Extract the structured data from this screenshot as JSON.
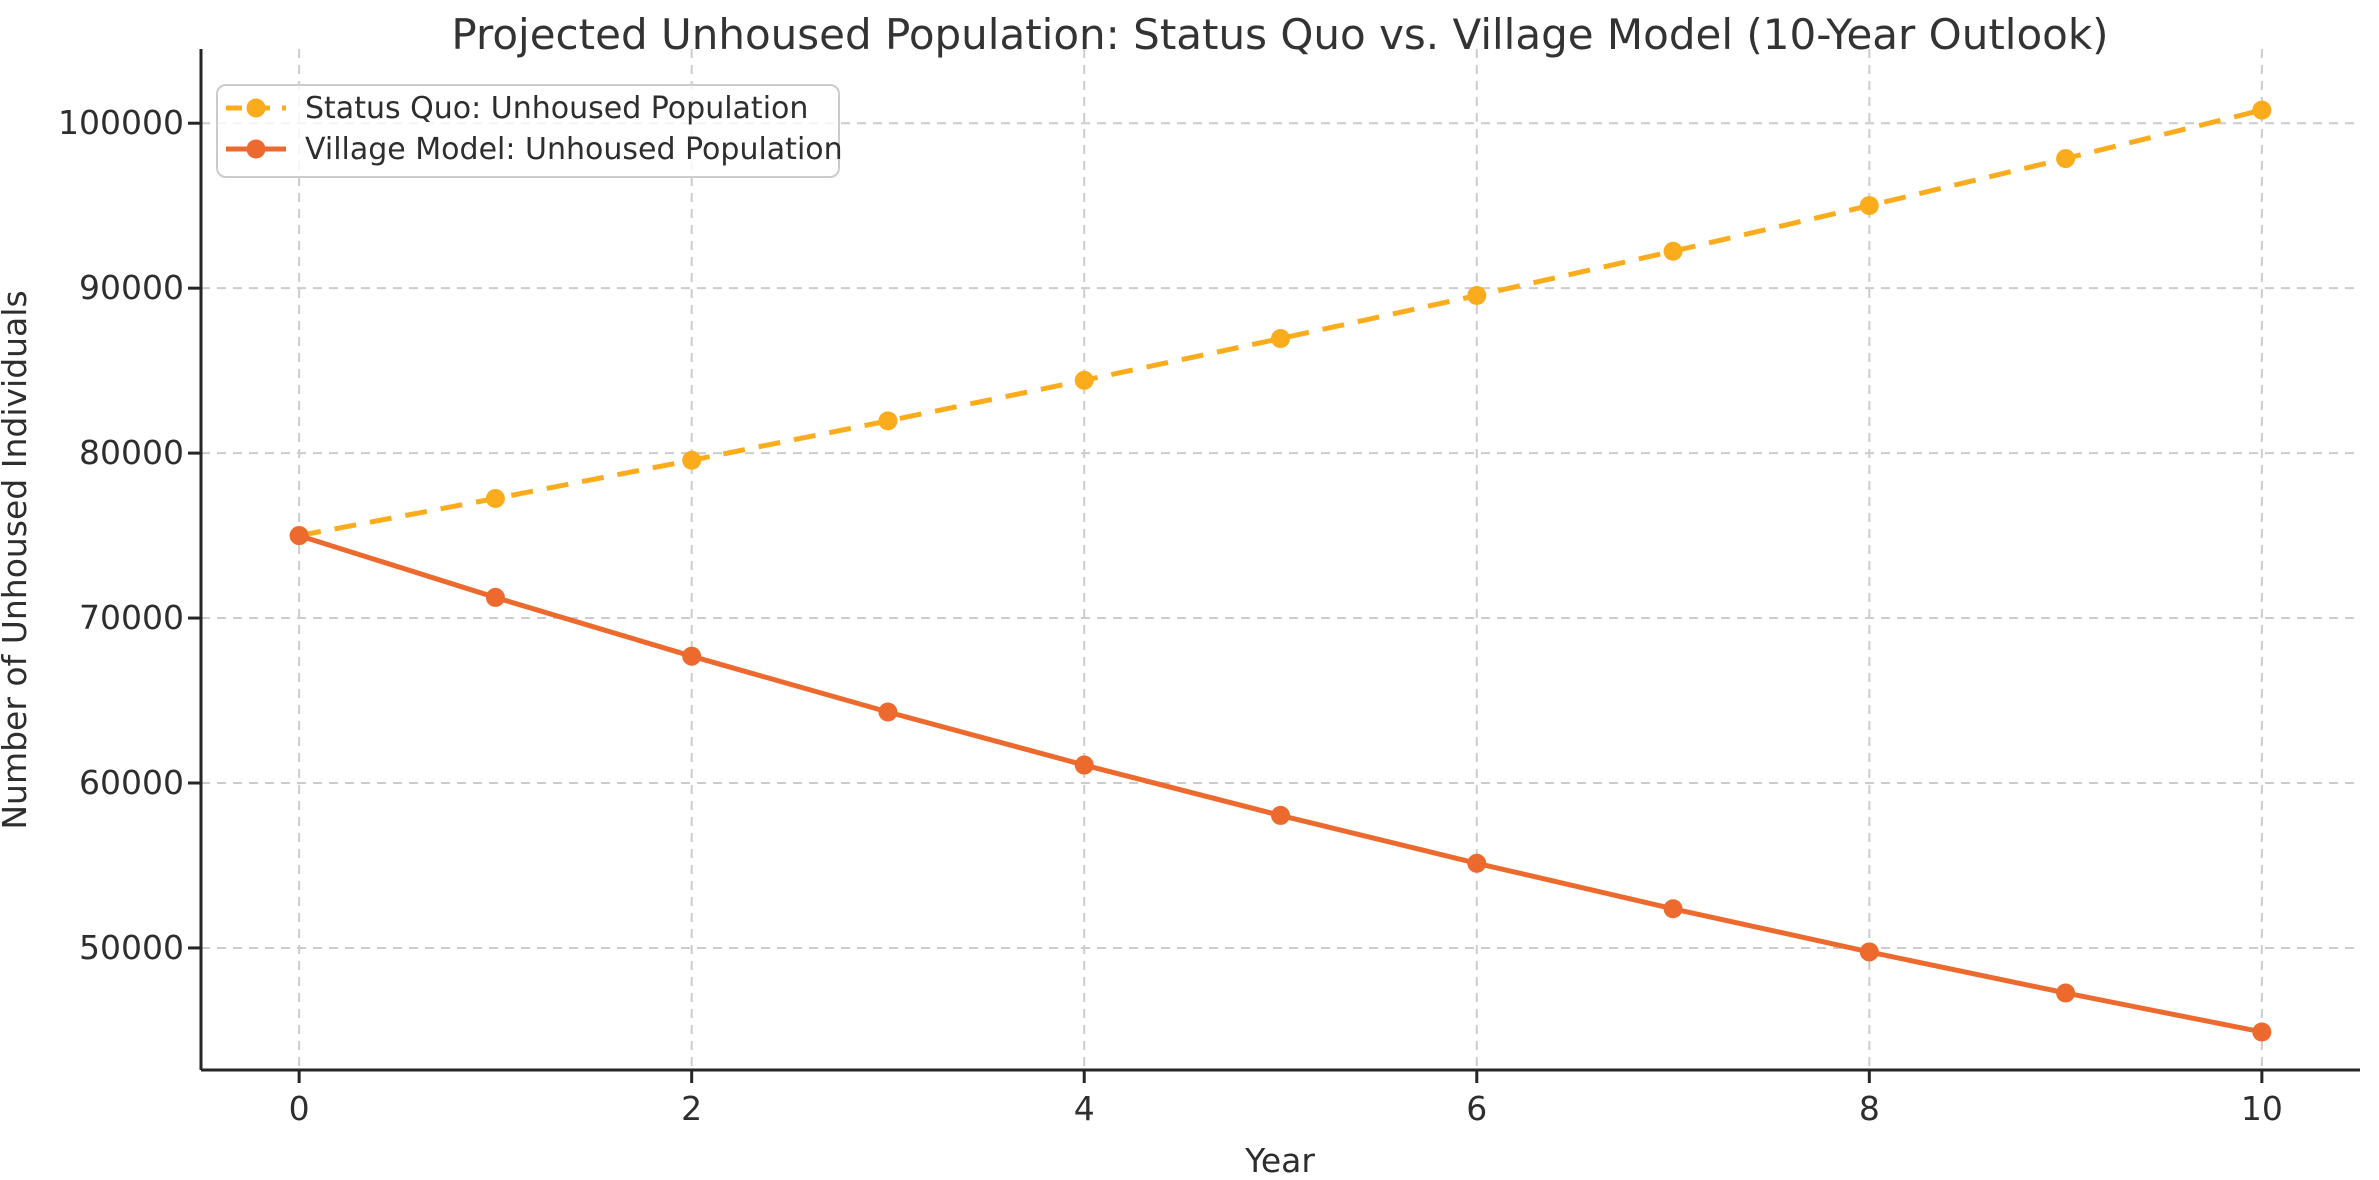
{
  "chart_data": {
    "type": "line",
    "title": "Projected Unhoused Population: Status Quo vs. Village Model (10-Year Outlook)",
    "xlabel": "Year",
    "ylabel": "Number of Unhoused Individuals",
    "x": [
      0,
      1,
      2,
      3,
      4,
      5,
      6,
      7,
      8,
      9,
      10
    ],
    "series": [
      {
        "id": "status-quo",
        "name": "Status Quo: Unhoused Population",
        "values": [
          75000,
          77250,
          79568,
          81954,
          84413,
          86945,
          89554,
          92240,
          95007,
          97857,
          100793
        ],
        "color": "#FBAC1C",
        "line_style": "dashed",
        "marker": "circle"
      },
      {
        "id": "village-model",
        "name": "Village Model: Unhoused Population",
        "values": [
          75000,
          71250,
          67688,
          64303,
          61088,
          58034,
          55132,
          52375,
          49757,
          47269,
          44905
        ],
        "color": "#ED6A2E",
        "line_style": "solid",
        "marker": "circle"
      }
    ],
    "x_ticks": [
      "0",
      "2",
      "4",
      "6",
      "8",
      "10"
    ],
    "x_tick_values": [
      0,
      2,
      4,
      6,
      8,
      10
    ],
    "y_ticks": [
      "50000",
      "60000",
      "70000",
      "80000",
      "90000",
      "100000"
    ],
    "y_tick_values": [
      50000,
      60000,
      70000,
      80000,
      90000,
      100000
    ],
    "xlim": [
      -0.5,
      10.5
    ],
    "ylim": [
      42600,
      104500
    ],
    "grid": {
      "visible": true,
      "style": "dashed",
      "color": "#cccccc"
    },
    "legend_position": "upper-left",
    "colors": {
      "axis": "#262626",
      "text": "#2e2e2e",
      "background": "#ffffff"
    }
  }
}
